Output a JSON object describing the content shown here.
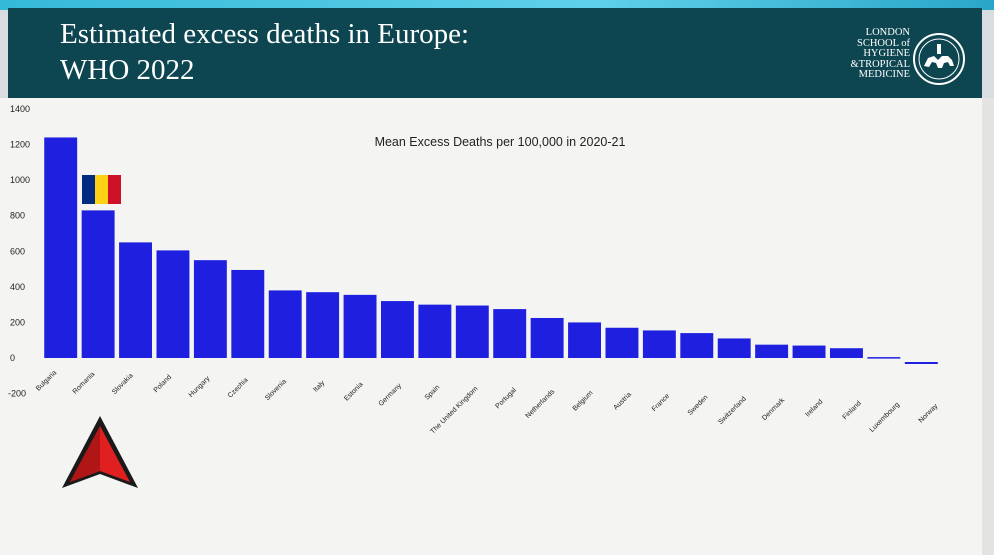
{
  "header": {
    "title_line1": "Estimated excess deaths in Europe:",
    "title_line2": "WHO 2022",
    "logo_lines": [
      "LONDON",
      "SCHOOL of",
      "HYGIENE",
      "&TROPICAL",
      "MEDICINE"
    ],
    "background_color": "#0d4650"
  },
  "flag_colors": [
    "#002b7f",
    "#fcd116",
    "#ce1126"
  ],
  "chart_data": {
    "type": "bar",
    "title": "Mean Excess Deaths per 100,000 in 2020-21",
    "xlabel": "",
    "ylabel": "",
    "ylim": [
      -200,
      1400
    ],
    "yticks": [
      -200,
      0,
      200,
      400,
      600,
      800,
      1000,
      1200,
      1400
    ],
    "grid": false,
    "bar_color": "#1f1fe0",
    "categories": [
      "Bulgaria",
      "Romania",
      "Slovakia",
      "Poland",
      "Hungary",
      "Czechia",
      "Slovenia",
      "Italy",
      "Estonia",
      "Germany",
      "Spain",
      "The United Kingdom",
      "Portugal",
      "Netherlands",
      "Belgium",
      "Austria",
      "France",
      "Sweden",
      "Switzerland",
      "Denmark",
      "Ireland",
      "Finland",
      "Luxembourg",
      "Norway"
    ],
    "values": [
      1240,
      830,
      650,
      605,
      550,
      495,
      380,
      370,
      355,
      320,
      300,
      295,
      275,
      225,
      200,
      170,
      155,
      140,
      110,
      75,
      70,
      55,
      5,
      -10
    ]
  }
}
